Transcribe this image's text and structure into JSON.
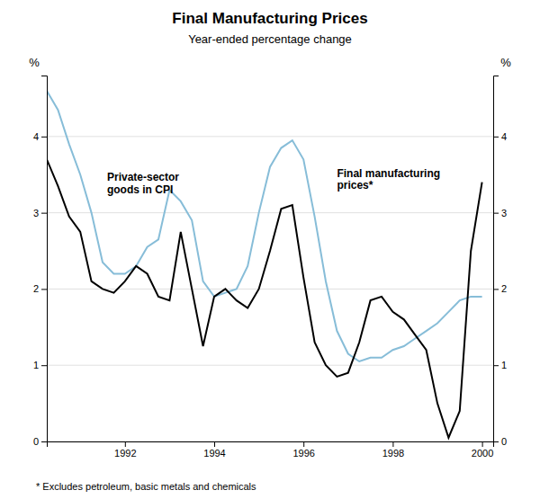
{
  "chart_data": {
    "type": "line",
    "title": "Final Manufacturing Prices",
    "subtitle": "Year-ended percentage change",
    "ylabel": "%",
    "y2label": "%",
    "footnote": "* Excludes petroleum, basic metals and chemicals",
    "x": [
      1990.25,
      1990.5,
      1990.75,
      1991.0,
      1991.25,
      1991.5,
      1991.75,
      1992.0,
      1992.25,
      1992.5,
      1992.75,
      1993.0,
      1993.25,
      1993.5,
      1993.75,
      1994.0,
      1994.25,
      1994.5,
      1994.75,
      1995.0,
      1995.25,
      1995.5,
      1995.75,
      1996.0,
      1996.25,
      1996.5,
      1996.75,
      1997.0,
      1997.25,
      1997.5,
      1997.75,
      1998.0,
      1998.25,
      1998.5,
      1998.75,
      1999.0,
      1999.25,
      1999.5,
      1999.75,
      2000.0
    ],
    "series": [
      {
        "color": "#87bdd8",
        "values": [
          4.6,
          4.35,
          3.9,
          3.5,
          3.0,
          2.35,
          2.2,
          2.2,
          2.3,
          2.55,
          2.65,
          3.3,
          3.15,
          2.9,
          2.1,
          1.9,
          1.95,
          2.0,
          2.3,
          3.0,
          3.6,
          3.85,
          3.95,
          3.7,
          2.95,
          2.1,
          1.45,
          1.15,
          1.05,
          1.1,
          1.1,
          1.2,
          1.25,
          1.35,
          1.45,
          1.55,
          1.7,
          1.85,
          1.9,
          1.9
        ]
      },
      {
        "color": "#000000",
        "values": [
          3.7,
          3.35,
          2.95,
          2.75,
          2.1,
          2.0,
          1.95,
          2.1,
          2.3,
          2.2,
          1.9,
          1.85,
          2.75,
          2.0,
          1.25,
          1.9,
          2.0,
          1.85,
          1.75,
          2.0,
          2.5,
          3.05,
          3.1,
          2.15,
          1.3,
          1.0,
          0.85,
          0.9,
          1.3,
          1.85,
          1.9,
          1.7,
          1.6,
          1.4,
          1.2,
          0.5,
          0.05,
          0.4,
          2.5,
          3.4
        ]
      }
    ],
    "xlim": [
      1990.25,
      2000.25
    ],
    "xticks": [
      1992,
      1994,
      1996,
      1998,
      2000
    ],
    "ylim": [
      0,
      4.8
    ],
    "yticks": [
      0,
      1,
      2,
      3,
      4
    ],
    "y2lim": [
      0,
      4.8
    ],
    "y2ticks": [
      0,
      1,
      2,
      3,
      4
    ],
    "grid": "y",
    "annotations": [
      {
        "text": "Private-sector\ngoods in CPI",
        "x": 1991.6,
        "y": 3.55
      },
      {
        "text": "Final manufacturing\nprices*",
        "x": 1996.75,
        "y": 3.6
      }
    ]
  }
}
